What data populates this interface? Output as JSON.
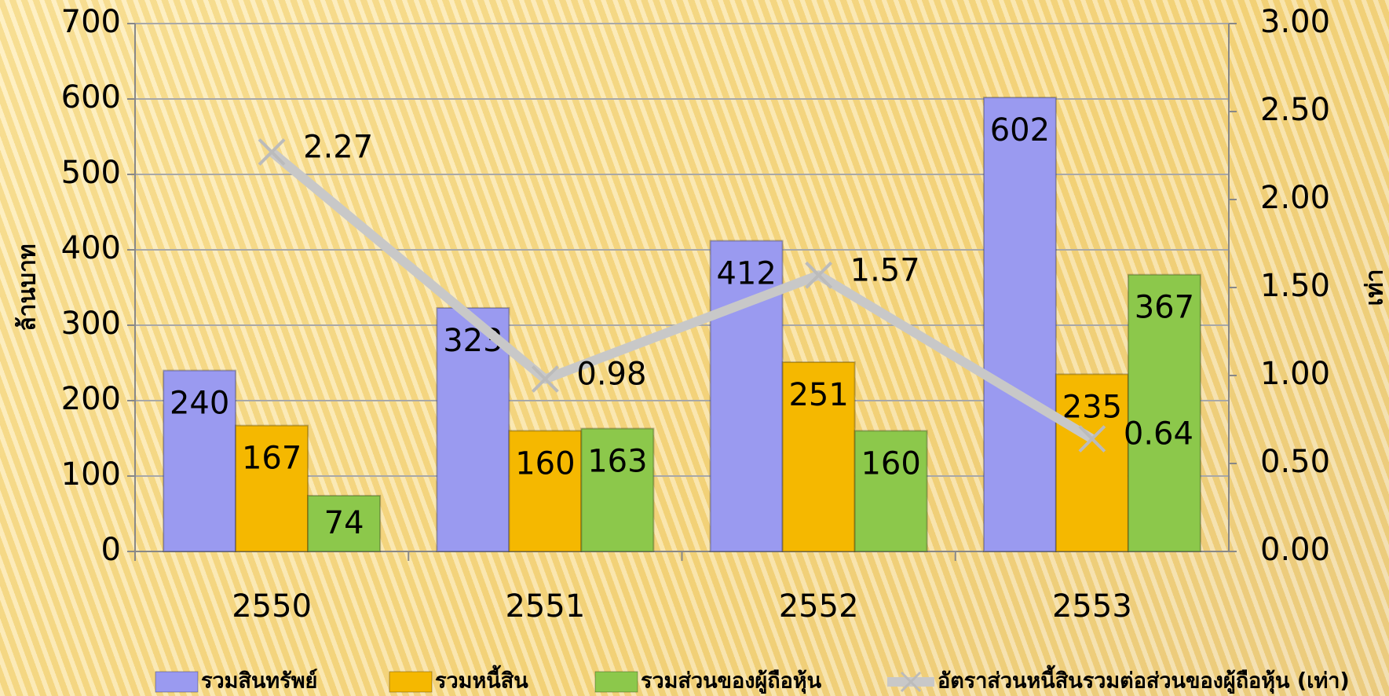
{
  "chart_data": {
    "type": "bar",
    "categories": [
      "2550",
      "2551",
      "2552",
      "2553"
    ],
    "series": [
      {
        "name": "รวมสินทรัพย์",
        "color": "#9a9af0",
        "values": [
          240,
          323,
          412,
          602
        ]
      },
      {
        "name": "รวมหนี้สิน",
        "color": "#f5b800",
        "values": [
          167,
          160,
          251,
          235
        ]
      },
      {
        "name": "รวมส่วนของผู้ถือหุ้น",
        "color": "#8cc84b",
        "values": [
          74,
          163,
          160,
          367
        ]
      },
      {
        "name": "อัตราส่วนหนี้สินรวมต่อส่วนของผู้ถือหุ้น (เท่า)",
        "color": "#c8c8c8",
        "axis": "y2",
        "values": [
          2.27,
          0.98,
          1.57,
          0.64
        ]
      }
    ],
    "ylabel": "ล้านบาท",
    "y2label": "เท่า",
    "ylim": [
      0,
      700
    ],
    "yticks": [
      0,
      100,
      200,
      300,
      400,
      500,
      600,
      700
    ],
    "y2lim": [
      0,
      3
    ],
    "y2ticks": [
      {
        "value": 0,
        "label": "0.00"
      },
      {
        "value": 0.5,
        "label": "0.50"
      },
      {
        "value": 1,
        "label": "1.00"
      },
      {
        "value": 1.5,
        "label": "1.50"
      },
      {
        "value": 2,
        "label": "2.00"
      },
      {
        "value": 2.5,
        "label": "2.50"
      },
      {
        "value": 3,
        "label": "3.00"
      }
    ],
    "grid": true,
    "legend": "bottom"
  }
}
